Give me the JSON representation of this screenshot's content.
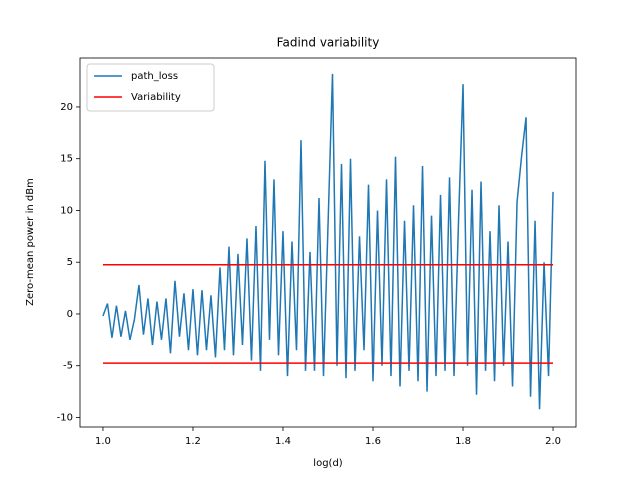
{
  "chart_data": {
    "type": "line",
    "title": "Fadind variability",
    "xlabel": "log(d)",
    "ylabel": "Zero-mean power in dBm",
    "xlim": [
      0.949,
      2.051
    ],
    "ylim": [
      -10.92,
      24.73
    ],
    "xticks": [
      {
        "value": 1.0,
        "label": "1.0"
      },
      {
        "value": 1.2,
        "label": "1.2"
      },
      {
        "value": 1.4,
        "label": "1.4"
      },
      {
        "value": 1.6,
        "label": "1.6"
      },
      {
        "value": 1.8,
        "label": "1.8"
      },
      {
        "value": 2.0,
        "label": "2.0"
      }
    ],
    "yticks": [
      -10,
      -5,
      0,
      5,
      10,
      15,
      20
    ],
    "legend": "upper left",
    "series": [
      {
        "name": "path_loss",
        "color": "#1f77b4",
        "x": [
          1.0,
          1.01,
          1.02,
          1.03,
          1.04,
          1.05,
          1.06,
          1.07,
          1.08,
          1.09,
          1.1,
          1.11,
          1.12,
          1.13,
          1.14,
          1.15,
          1.16,
          1.17,
          1.18,
          1.19,
          1.2,
          1.21,
          1.22,
          1.23,
          1.24,
          1.25,
          1.26,
          1.27,
          1.28,
          1.29,
          1.3,
          1.31,
          1.32,
          1.33,
          1.34,
          1.35,
          1.36,
          1.37,
          1.38,
          1.39,
          1.4,
          1.41,
          1.42,
          1.43,
          1.44,
          1.45,
          1.46,
          1.47,
          1.48,
          1.49,
          1.5,
          1.51,
          1.52,
          1.53,
          1.54,
          1.55,
          1.56,
          1.57,
          1.58,
          1.59,
          1.6,
          1.61,
          1.62,
          1.63,
          1.64,
          1.65,
          1.66,
          1.67,
          1.68,
          1.69,
          1.7,
          1.71,
          1.72,
          1.73,
          1.74,
          1.75,
          1.76,
          1.77,
          1.78,
          1.79,
          1.8,
          1.81,
          1.82,
          1.83,
          1.84,
          1.85,
          1.86,
          1.87,
          1.88,
          1.89,
          1.9,
          1.91,
          1.92,
          1.93,
          1.94,
          1.95,
          1.96,
          1.97,
          1.98,
          1.99,
          2.0
        ],
        "values": [
          -0.2,
          1.0,
          -2.3,
          0.8,
          -2.2,
          0.3,
          -2.5,
          -0.5,
          2.8,
          -2.0,
          1.5,
          -3.0,
          1.2,
          -2.5,
          1.5,
          -3.8,
          3.2,
          -2.2,
          2.0,
          -3.5,
          2.4,
          -4.0,
          2.3,
          -3.5,
          1.8,
          -4.2,
          4.5,
          -3.5,
          6.5,
          -4.0,
          5.8,
          -3.0,
          7.3,
          -4.5,
          8.5,
          -5.5,
          14.8,
          -2.5,
          13.0,
          -4.0,
          8.0,
          -6.0,
          7.0,
          -3.5,
          16.8,
          -5.5,
          6.0,
          -5.5,
          11.2,
          -6.0,
          8.5,
          23.2,
          -5.0,
          14.5,
          -6.2,
          15.0,
          -5.5,
          7.5,
          -3.5,
          12.5,
          -6.5,
          10.0,
          -5.0,
          13.0,
          -6.0,
          15.2,
          -7.0,
          9.0,
          -5.5,
          10.5,
          -6.5,
          14.3,
          -7.5,
          9.5,
          -6.0,
          11.5,
          -5.5,
          13.2,
          -6.0,
          9.0,
          22.2,
          -5.0,
          12.0,
          -7.8,
          12.8,
          -5.5,
          8.0,
          -6.5,
          10.5,
          -5.0,
          7.0,
          -7.0,
          10.8,
          15.2,
          19.0,
          -8.0,
          9.0,
          -9.2,
          5.0,
          -6.0,
          11.8
        ]
      },
      {
        "name": "Variability",
        "color": "#ff0000",
        "x": [
          1.0,
          2.0
        ],
        "values": [
          4.75,
          4.75
        ]
      },
      {
        "color": "#ff0000",
        "x": [
          1.0,
          2.0
        ],
        "values": [
          -4.75,
          -4.75
        ]
      }
    ]
  }
}
